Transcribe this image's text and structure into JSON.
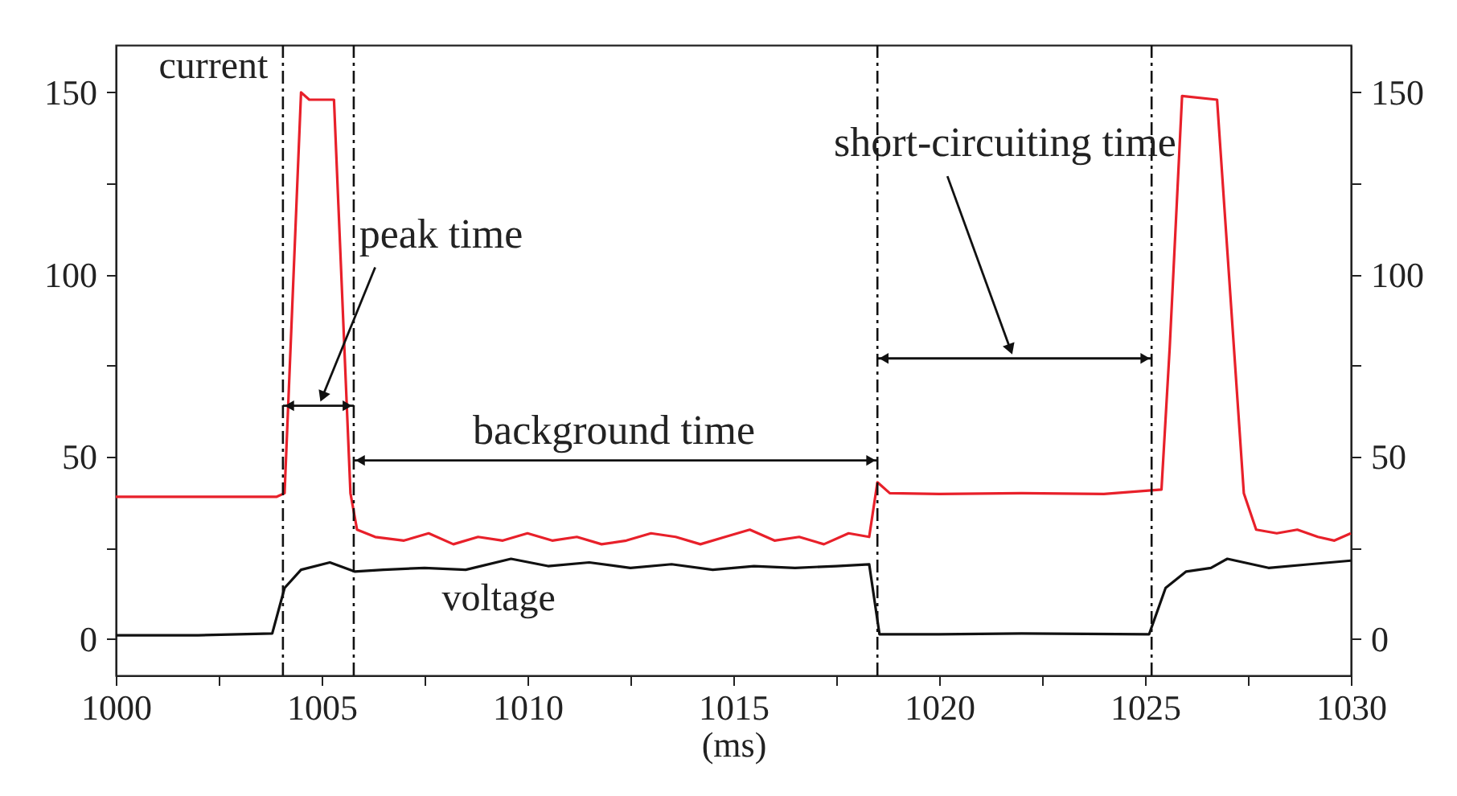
{
  "chart_data": {
    "type": "line",
    "xlabel": "(ms)",
    "xlim": [
      1000,
      1030
    ],
    "xticks": [
      1000,
      {
        "value": 1002.5,
        "label": null
      },
      1005,
      {
        "value": 1007.5,
        "label": null
      },
      1010,
      {
        "value": 1012.5,
        "label": null
      },
      1015,
      {
        "value": 1017.5,
        "label": null
      },
      1020,
      {
        "value": 1022.5,
        "label": null
      },
      1025,
      {
        "value": 1027.5,
        "label": null
      },
      1030
    ],
    "ylim": [
      -10,
      163
    ],
    "yticks": [
      0,
      {
        "value": 25,
        "label": null
      },
      50,
      {
        "value": 75,
        "label": null
      },
      100,
      {
        "value": 125,
        "label": null
      },
      150
    ],
    "y2lim": [
      -10,
      163
    ],
    "y2ticks": [
      0,
      {
        "value": 25,
        "label": null
      },
      50,
      {
        "value": 75,
        "label": null
      },
      100,
      {
        "value": 125,
        "label": null
      },
      150
    ],
    "grid": false,
    "marker": "none",
    "line_style": "solid",
    "series": [
      {
        "name": "current",
        "color": "#e8202a",
        "x": [
          1000,
          1002,
          1003.9,
          1004.1,
          1004.5,
          1004.7,
          1005.3,
          1005.7,
          1005.86,
          1006.3,
          1007,
          1007.6,
          1008.2,
          1008.8,
          1009.4,
          1010,
          1010.6,
          1011.2,
          1011.8,
          1012.4,
          1013,
          1013.6,
          1014.2,
          1014.8,
          1015.4,
          1016,
          1016.6,
          1017.2,
          1017.8,
          1018.3,
          1018.5,
          1018.8,
          1020,
          1022,
          1024,
          1025.4,
          1025.6,
          1025.9,
          1026.75,
          1027.4,
          1027.7,
          1028.2,
          1028.7,
          1029.2,
          1029.6,
          1030
        ],
        "values": [
          39,
          39,
          39,
          40,
          150,
          148,
          148,
          40,
          30,
          28,
          27,
          29,
          26,
          28,
          27,
          29,
          27,
          28,
          26,
          27,
          29,
          28,
          26,
          28,
          30,
          27,
          28,
          26,
          29,
          28,
          43,
          40,
          39.8,
          40,
          39.8,
          41,
          80,
          149,
          148,
          40,
          30,
          29,
          30,
          28,
          27,
          29
        ]
      },
      {
        "name": "voltage",
        "color": "#111111",
        "x": [
          1000,
          1002,
          1003.8,
          1004.1,
          1004.5,
          1005.2,
          1005.8,
          1006.5,
          1007.5,
          1008.5,
          1009.6,
          1010.5,
          1011.5,
          1012.5,
          1013.5,
          1014.5,
          1015.5,
          1016.5,
          1017.5,
          1018.3,
          1018.55,
          1020,
          1022,
          1025.1,
          1025.5,
          1026,
          1026.6,
          1027,
          1028,
          1029,
          1030
        ],
        "values": [
          1,
          1,
          1.5,
          14,
          19,
          21,
          18.5,
          19,
          19.5,
          19,
          22,
          20,
          21,
          19.5,
          20.5,
          19,
          20,
          19.5,
          20,
          20.5,
          1.3,
          1.3,
          1.5,
          1.3,
          14,
          18.5,
          19.5,
          22,
          19.5,
          20.5,
          21.5
        ]
      }
    ],
    "ref_lines": [
      {
        "axis": "x",
        "value": 1004.06,
        "line_style": "dashed",
        "color": "#111111"
      },
      {
        "axis": "x",
        "value": 1005.78,
        "line_style": "dashed",
        "color": "#111111"
      },
      {
        "axis": "x",
        "value": 1018.5,
        "line_style": "dashed",
        "color": "#111111"
      },
      {
        "axis": "x",
        "value": 1025.16,
        "line_style": "dashed",
        "color": "#111111"
      }
    ],
    "annotations": [
      "peak time",
      "background time",
      "short-circuiting time"
    ]
  }
}
